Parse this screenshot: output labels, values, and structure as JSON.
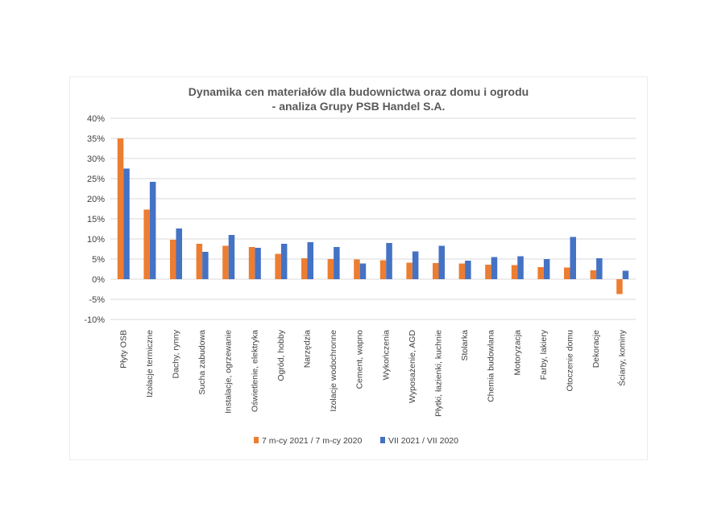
{
  "chart_data": {
    "type": "bar",
    "title": [
      "Dynamika cen materiałów dla budownictwa oraz domu i ogrodu",
      "- analiza Grupy PSB Handel S.A."
    ],
    "xlabel": "",
    "ylabel": "",
    "ylim": [
      -10,
      40
    ],
    "yticks": [
      -10,
      -5,
      0,
      5,
      10,
      15,
      20,
      25,
      30,
      35,
      40
    ],
    "ytick_labels": [
      "-10%",
      "-5%",
      "0%",
      "5%",
      "10%",
      "15%",
      "20%",
      "25%",
      "30%",
      "35%",
      "40%"
    ],
    "grid": true,
    "legend_position": "bottom",
    "categories": [
      "Płyty OSB",
      "Izolacje termiczne",
      "Dachy, rynny",
      "Sucha zabudowa",
      "Instalacje, ogrzewanie",
      "Oświetlenie, elektryka",
      "Ogród, hobby",
      "Narzędzia",
      "Izolacje wodochronne",
      "Cement, wapno",
      "Wykończenia",
      "Wyposażenie, AGD",
      "Płytki, łazienki, kuchnie",
      "Stolarka",
      "Chemia budowlana",
      "Motoryzacja",
      "Farby, lakiery",
      "Otoczenie domu",
      "Dekoracje",
      "Ściany, kominy"
    ],
    "series": [
      {
        "name": "7 m-cy 2021 / 7 m-cy 2020",
        "color": "#ed7d31",
        "values": [
          35.0,
          17.3,
          9.8,
          8.8,
          8.3,
          8.0,
          6.3,
          5.2,
          5.0,
          4.9,
          4.7,
          4.1,
          4.0,
          3.9,
          3.6,
          3.5,
          3.0,
          2.9,
          2.2,
          -3.7
        ]
      },
      {
        "name": "VII 2021 / VII 2020",
        "color": "#4472c4",
        "values": [
          27.5,
          24.2,
          12.6,
          6.8,
          11.0,
          7.8,
          8.8,
          9.2,
          8.0,
          3.9,
          9.0,
          6.9,
          8.3,
          4.6,
          5.5,
          5.7,
          5.0,
          10.5,
          5.2,
          2.1
        ]
      }
    ]
  }
}
